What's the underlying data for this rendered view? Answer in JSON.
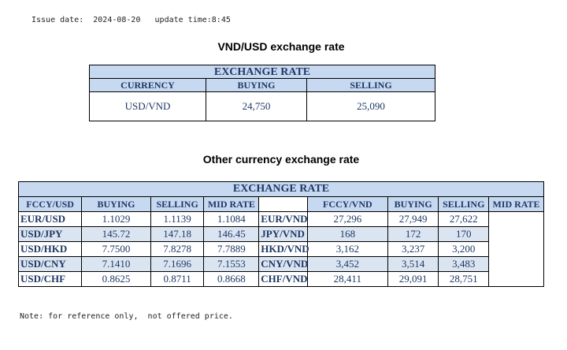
{
  "header": {
    "issue_line": "Issue date:  2024-08-20   update time:8:45"
  },
  "section1": {
    "title": "VND/USD exchange rate",
    "band": "EXCHANGE RATE",
    "columns": [
      "CURRENCY",
      "BUYING",
      "SELLING"
    ],
    "row": [
      "USD/VND",
      "24,750",
      "25,090"
    ]
  },
  "section2": {
    "title": "Other currency exchange rate",
    "band": "EXCHANGE  RATE",
    "left_columns": [
      "FCCY/USD",
      "BUYING",
      "SELLING",
      "MID RATE"
    ],
    "right_columns": [
      "FCCY/VND",
      "BUYING",
      "SELLING",
      "MID RATE"
    ],
    "rows": [
      {
        "l": [
          "EUR/USD",
          "1.1029",
          "1.1139",
          "1.1084"
        ],
        "r": [
          "EUR/VND",
          "27,296",
          "27,949",
          "27,622"
        ]
      },
      {
        "l": [
          "USD/JPY",
          "145.72",
          "147.18",
          "146.45"
        ],
        "r": [
          "JPY/VND",
          "168",
          "172",
          "170"
        ]
      },
      {
        "l": [
          "USD/HKD",
          "7.7500",
          "7.8278",
          "7.7889"
        ],
        "r": [
          "HKD/VND",
          "3,162",
          "3,237",
          "3,200"
        ]
      },
      {
        "l": [
          "USD/CNY",
          "7.1410",
          "7.1696",
          "7.1553"
        ],
        "r": [
          "CNY/VND",
          "3,452",
          "3,514",
          "3,483"
        ]
      },
      {
        "l": [
          "USD/CHF",
          "0.8625",
          "0.8711",
          "0.8668"
        ],
        "r": [
          "CHF/VND",
          "28,411",
          "29,091",
          "28,751"
        ]
      }
    ]
  },
  "footer": {
    "note": "Note: for reference only,  not offered price."
  },
  "colors": {
    "header_fill": "#c6d9f1",
    "row_tint": "#dbe5f1",
    "text_blue": "#1f3864"
  }
}
